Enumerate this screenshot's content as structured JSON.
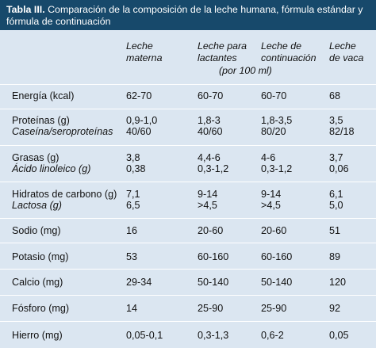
{
  "table": {
    "title_bold": "Tabla III.",
    "title_rest": " Comparación de la composición de la leche humana, fórmula estándar y fórmula de continuación",
    "headers": [
      {
        "line1": "Leche",
        "line2": "materna"
      },
      {
        "line1": "Leche para",
        "line2": "lactantes"
      },
      {
        "line1": "Leche de",
        "line2": "continuación"
      },
      {
        "line1": "Leche",
        "line2": "de vaca"
      }
    ],
    "unit_note": "(por 100 ml)",
    "rows": [
      {
        "label": "Energía (kcal)",
        "sublabel": "",
        "values": [
          "62-70",
          "60-70",
          "60-70",
          "68"
        ],
        "subvalues": []
      },
      {
        "label": "Proteínas (g)",
        "sublabel": "Caseína/seroproteínas",
        "values": [
          "0,9-1,0",
          "1,8-3",
          "1,8-3,5",
          "3,5"
        ],
        "subvalues": [
          "40/60",
          "40/60",
          "80/20",
          "82/18"
        ]
      },
      {
        "label": "Grasas (g)",
        "sublabel": "Ácido linoleico (g)",
        "values": [
          "3,8",
          "4,4-6",
          "4-6",
          "3,7"
        ],
        "subvalues": [
          "0,38",
          "0,3-1,2",
          "0,3-1,2",
          "0,06"
        ]
      },
      {
        "label": "Hidratos de carbono (g)",
        "sublabel": "Lactosa (g)",
        "values": [
          "7,1",
          "9-14",
          "9-14",
          "6,1"
        ],
        "subvalues": [
          "6,5",
          ">4,5",
          ">4,5",
          "5,0"
        ]
      },
      {
        "label": "Sodio (mg)",
        "sublabel": "",
        "values": [
          "16",
          "20-60",
          "20-60",
          "51"
        ],
        "subvalues": []
      },
      {
        "label": "Potasio (mg)",
        "sublabel": "",
        "values": [
          "53",
          "60-160",
          "60-160",
          "89"
        ],
        "subvalues": []
      },
      {
        "label": "Calcio (mg)",
        "sublabel": "",
        "values": [
          "29-34",
          "50-140",
          "50-140",
          "120"
        ],
        "subvalues": []
      },
      {
        "label": "Fósforo (mg)",
        "sublabel": "",
        "values": [
          "14",
          "25-90",
          "25-90",
          "92"
        ],
        "subvalues": []
      },
      {
        "label": "Hierro (mg)",
        "sublabel": "",
        "values": [
          "0,05-0,1",
          "0,3-1,3",
          "0,6-2",
          "0,05"
        ],
        "subvalues": []
      }
    ]
  },
  "colors": {
    "header_bg": "#17496b",
    "body_bg": "#dbe6f1",
    "separator": "#ffffff"
  }
}
